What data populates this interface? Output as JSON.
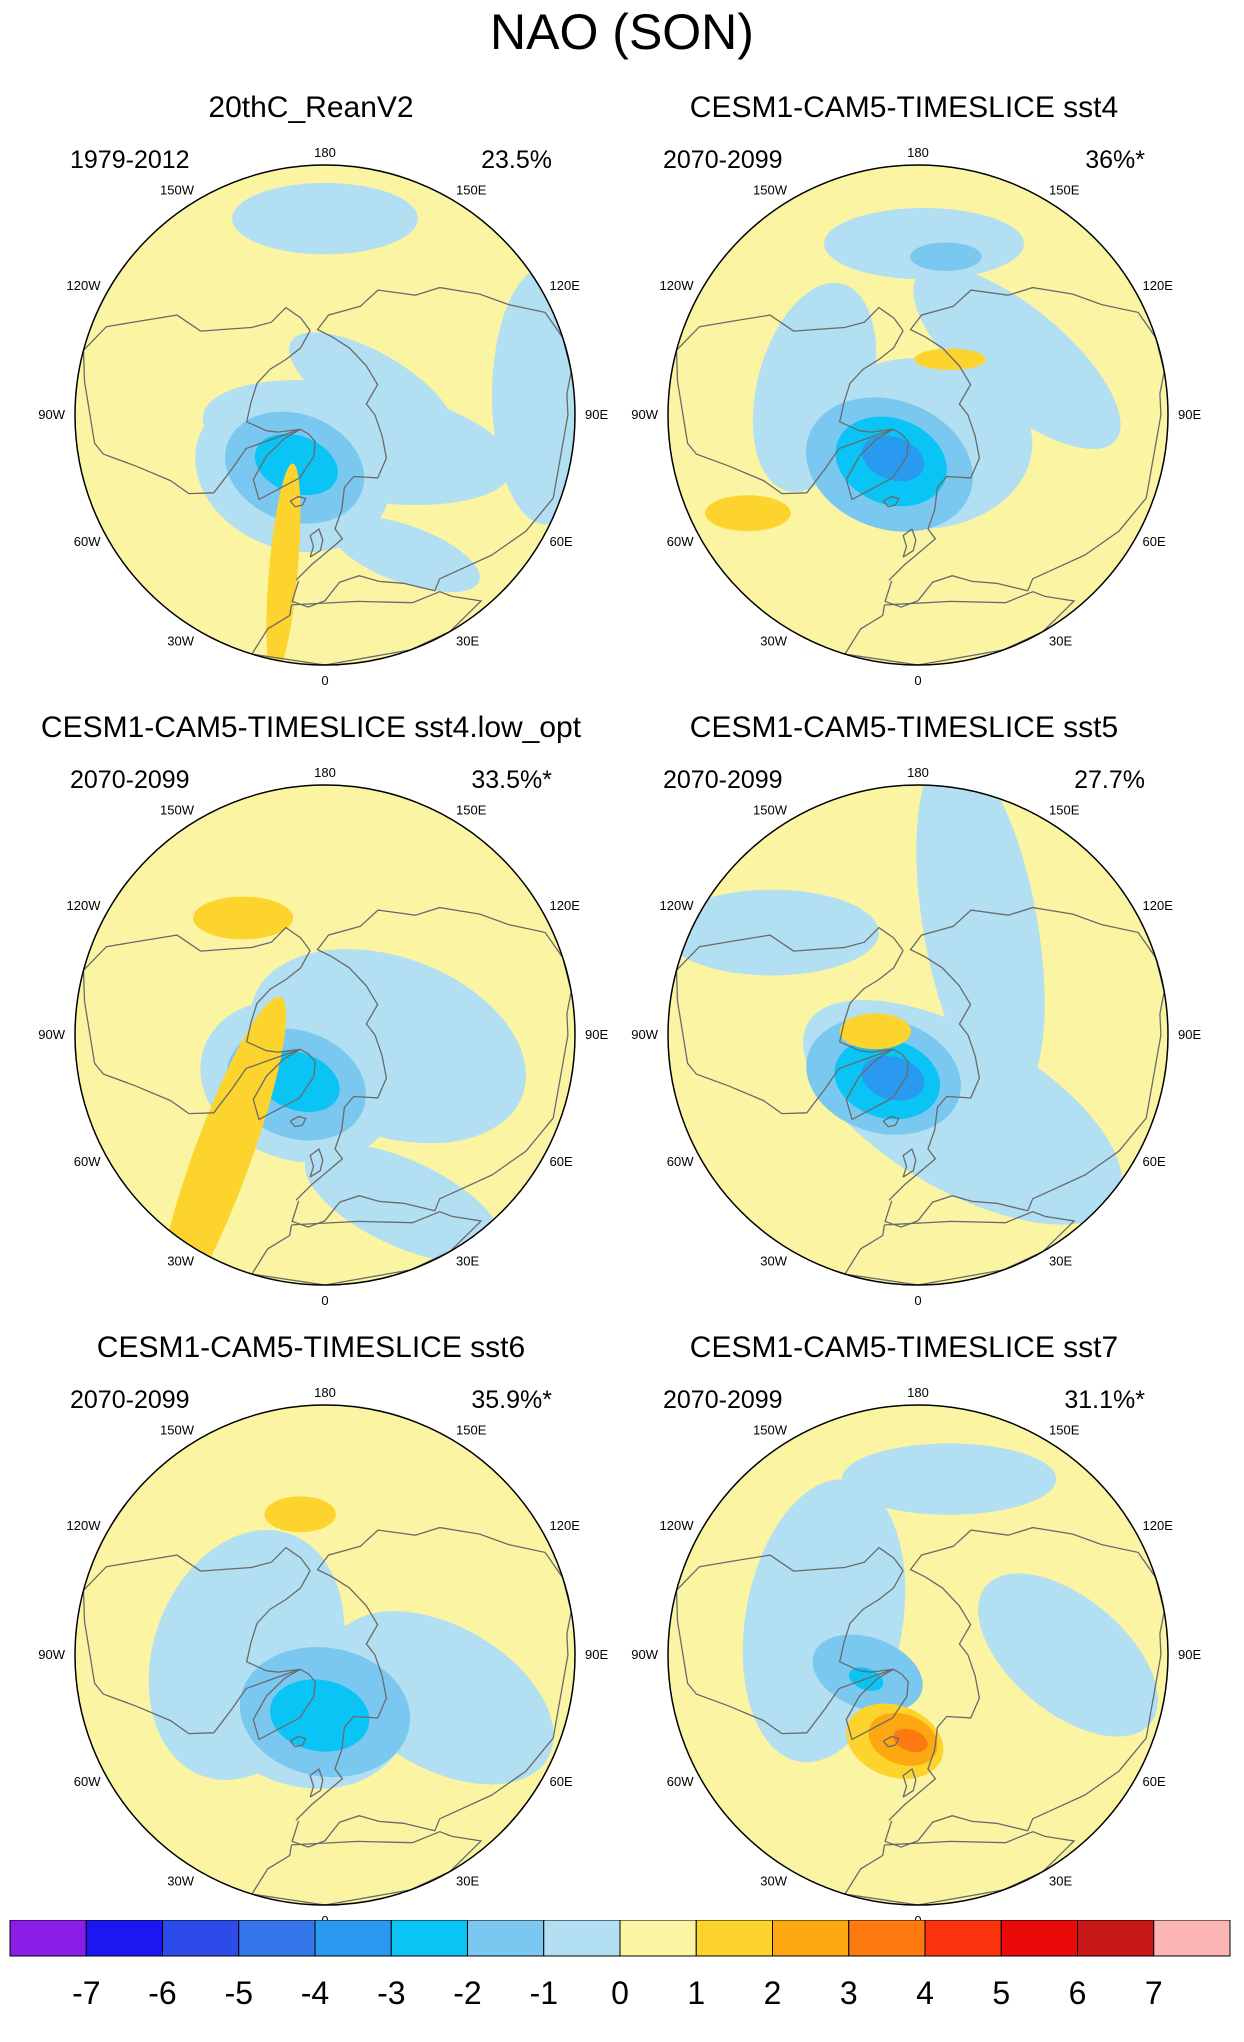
{
  "title": "NAO (SON)",
  "colors": {
    "-8": "#8a1ee8",
    "-7": "#1a17f0",
    "-6": "#2d4be8",
    "-5": "#3577ea",
    "-4": "#2a99f0",
    "-3": "#0ac4f5",
    "-2": "#7ac8f0",
    "-1": "#b3dff2",
    "0": "#fbf5a3",
    "1": "#fdd32d",
    "2": "#fda810",
    "3": "#fc7a10",
    "4": "#fb3410",
    "5": "#ea0a0a",
    "6": "#c91818",
    "7": "#fcb5b5",
    "coast": "#6a6a6a",
    "outline": "#000000"
  },
  "chart_data": {
    "type": "polar contour map",
    "colorbar": {
      "levels": [
        -7,
        -6,
        -5,
        -4,
        -3,
        -2,
        -1,
        0,
        1,
        2,
        3,
        4,
        5,
        6,
        7
      ],
      "labels": [
        "-7",
        "-6",
        "-5",
        "-4",
        "-3",
        "-2",
        "-1",
        "0",
        "1",
        "2",
        "3",
        "4",
        "5",
        "6",
        "7"
      ]
    },
    "longitude_labels": [
      "180",
      "150W",
      "150E",
      "120W",
      "120E",
      "90W",
      "90E",
      "60W",
      "60E",
      "30W",
      "30E",
      "0"
    ],
    "panels": [
      {
        "title": "20thC_ReanV2",
        "period": "1979-2012",
        "variance": "23.5%",
        "anomalies": [
          {
            "lon": 50,
            "lat": 78,
            "sl": 16,
            "sr": 44,
            "rot": 10,
            "level": -1
          },
          {
            "lon": 120,
            "lat": 75,
            "sl": 10,
            "sr": 26,
            "rot": 30,
            "level": -1
          },
          {
            "lon": 180,
            "lat": 35,
            "sl": 10,
            "sr": 26,
            "rot": 0,
            "level": -1
          },
          {
            "lon": 30,
            "lat": 45,
            "sl": 8,
            "sr": 22,
            "rot": 20,
            "level": -1
          },
          {
            "lon": 95,
            "lat": 28,
            "sl": 15,
            "sr": 36,
            "rot": 90,
            "level": -1
          },
          {
            "lon": 330,
            "lat": 72,
            "sl": 22,
            "sr": 28,
            "rot": 20,
            "level": -1
          },
          {
            "lon": 330,
            "lat": 73,
            "sl": 15,
            "sr": 20,
            "rot": 20,
            "level": -2
          },
          {
            "lon": 330,
            "lat": 74,
            "sl": 8,
            "sr": 12,
            "rot": 20,
            "level": -3
          },
          {
            "lon": 345,
            "lat": 45,
            "sl": 4,
            "sr": 30,
            "rot": 95,
            "level": 1
          }
        ]
      },
      {
        "title": "CESM1-CAM5-TIMESLICE sst4",
        "period": "2070-2099",
        "variance": "36%*",
        "anomalies": [
          {
            "lon": 0,
            "lat": 82,
            "sl": 24,
            "sr": 32,
            "rot": 0,
            "level": -1
          },
          {
            "lon": 255,
            "lat": 60,
            "sl": 16,
            "sr": 30,
            "rot": 105,
            "level": -1
          },
          {
            "lon": 120,
            "lat": 58,
            "sl": 14,
            "sr": 36,
            "rot": 40,
            "level": -1
          },
          {
            "lon": 178,
            "lat": 42,
            "sl": 10,
            "sr": 28,
            "rot": 0,
            "level": -1
          },
          {
            "lon": 170,
            "lat": 45,
            "sl": 4,
            "sr": 10,
            "rot": 0,
            "level": -2
          },
          {
            "lon": 330,
            "lat": 74,
            "sl": 18,
            "sr": 24,
            "rot": 20,
            "level": -2
          },
          {
            "lon": 330,
            "lat": 75,
            "sl": 12,
            "sr": 16,
            "rot": 20,
            "level": -3
          },
          {
            "lon": 330,
            "lat": 76,
            "sl": 6,
            "sr": 9,
            "rot": 20,
            "level": -4
          },
          {
            "lon": 300,
            "lat": 35,
            "sl": 5,
            "sr": 12,
            "rot": 0,
            "level": 1
          },
          {
            "lon": 150,
            "lat": 72,
            "sl": 3,
            "sr": 10,
            "rot": 0,
            "level": 1
          }
        ]
      },
      {
        "title": "CESM1-CAM5-TIMESLICE sst4.low_opt",
        "period": "2070-2099",
        "variance": "33.5%*",
        "anomalies": [
          {
            "lon": 80,
            "lat": 72,
            "sl": 25,
            "sr": 40,
            "rot": 20,
            "level": -1
          },
          {
            "lon": 25,
            "lat": 38,
            "sl": 12,
            "sr": 30,
            "rot": 25,
            "level": -1
          },
          {
            "lon": 330,
            "lat": 75,
            "sl": 22,
            "sr": 28,
            "rot": 20,
            "level": -1
          },
          {
            "lon": 330,
            "lat": 74,
            "sl": 15,
            "sr": 20,
            "rot": 20,
            "level": -2
          },
          {
            "lon": 330,
            "lat": 75,
            "sl": 8,
            "sr": 12,
            "rot": 20,
            "level": -3
          },
          {
            "lon": 320,
            "lat": 45,
            "sl": 8,
            "sr": 48,
            "rot": 110,
            "level": 1
          },
          {
            "lon": 215,
            "lat": 50,
            "sl": 6,
            "sr": 14,
            "rot": 0,
            "level": 1
          }
        ]
      },
      {
        "title": "CESM1-CAM5-TIMESLICE sst5",
        "period": "2070-2099",
        "variance": "27.7%",
        "anomalies": [
          {
            "lon": 30,
            "lat": 65,
            "sl": 22,
            "sr": 50,
            "rot": 30,
            "level": -1
          },
          {
            "lon": 150,
            "lat": 55,
            "sl": 16,
            "sr": 50,
            "rot": 80,
            "level": -1
          },
          {
            "lon": 235,
            "lat": 40,
            "sl": 12,
            "sr": 30,
            "rot": 0,
            "level": -1
          },
          {
            "lon": 320,
            "lat": 75,
            "sl": 16,
            "sr": 22,
            "rot": 15,
            "level": -2
          },
          {
            "lon": 325,
            "lat": 75,
            "sl": 11,
            "sr": 15,
            "rot": 15,
            "level": -3
          },
          {
            "lon": 330,
            "lat": 76,
            "sl": 6,
            "sr": 9,
            "rot": 15,
            "level": -4
          },
          {
            "lon": 265,
            "lat": 78,
            "sl": 5,
            "sr": 10,
            "rot": 0,
            "level": 1
          }
        ]
      },
      {
        "title": "CESM1-CAM5-TIMESLICE sst6",
        "period": "2070-2099",
        "variance": "35.9%*",
        "anomalies": [
          {
            "lon": 270,
            "lat": 68,
            "sl": 26,
            "sr": 36,
            "rot": 110,
            "level": -1
          },
          {
            "lon": 70,
            "lat": 55,
            "sl": 20,
            "sr": 34,
            "rot": 30,
            "level": -1
          },
          {
            "lon": 335,
            "lat": 76,
            "sl": 24,
            "sr": 30,
            "rot": 20,
            "level": -1
          },
          {
            "lon": 0,
            "lat": 74,
            "sl": 18,
            "sr": 24,
            "rot": 10,
            "level": -2
          },
          {
            "lon": 355,
            "lat": 73,
            "sl": 10,
            "sr": 14,
            "rot": 10,
            "level": -3
          },
          {
            "lon": 190,
            "lat": 50,
            "sl": 5,
            "sr": 10,
            "rot": 0,
            "level": 1
          }
        ]
      },
      {
        "title": "CESM1-CAM5-TIMESLICE sst7",
        "period": "2070-2099",
        "variance": "31.1%*",
        "anomalies": [
          {
            "lon": 250,
            "lat": 62,
            "sl": 22,
            "sr": 40,
            "rot": 100,
            "level": -1
          },
          {
            "lon": 90,
            "lat": 48,
            "sl": 16,
            "sr": 30,
            "rot": 40,
            "level": -1
          },
          {
            "lon": 170,
            "lat": 40,
            "sl": 10,
            "sr": 30,
            "rot": 0,
            "level": -1
          },
          {
            "lon": 290,
            "lat": 75,
            "sl": 10,
            "sr": 16,
            "rot": 20,
            "level": -2
          },
          {
            "lon": 295,
            "lat": 74,
            "sl": 3,
            "sr": 5,
            "rot": 20,
            "level": -3
          },
          {
            "lon": 345,
            "lat": 65,
            "sl": 10,
            "sr": 14,
            "rot": 20,
            "level": 1
          },
          {
            "lon": 350,
            "lat": 66,
            "sl": 7,
            "sr": 10,
            "rot": 20,
            "level": 2
          },
          {
            "lon": 355,
            "lat": 66,
            "sl": 3,
            "sr": 5,
            "rot": 20,
            "level": 3
          }
        ]
      }
    ]
  }
}
